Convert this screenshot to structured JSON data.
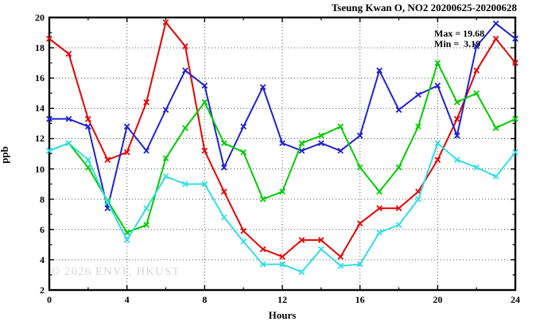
{
  "title": "Tseung Kwan O, NO2 20200625-20200628",
  "annotation": {
    "max_label": "Max = 19.68",
    "min_label": "Min =  3.19"
  },
  "axes": {
    "ylabel": "ppb",
    "xlabel": "Hours"
  },
  "watermark": "© 2026 ENVF, HKUST",
  "colors": {
    "series_red": "#e60000",
    "series_blue": "#2020d5",
    "series_green": "#00cc00",
    "series_cyan": "#33dde6",
    "frame": "#000000",
    "grid": "#555555",
    "watermark": "#d7d7d7"
  },
  "chart_data": {
    "type": "line",
    "title": "Tseung Kwan O, NO2 20200625-20200628",
    "xlabel": "Hours",
    "ylabel": "ppb",
    "x": [
      0,
      1,
      2,
      3,
      4,
      5,
      6,
      7,
      8,
      9,
      10,
      11,
      12,
      13,
      14,
      15,
      16,
      17,
      18,
      19,
      20,
      21,
      22,
      23,
      24
    ],
    "series": [
      {
        "name": "red-line",
        "color": "#e60000",
        "values": [
          18.6,
          17.6,
          13.3,
          10.6,
          11.1,
          14.4,
          19.68,
          18.1,
          11.2,
          8.5,
          5.9,
          4.7,
          4.2,
          5.3,
          5.3,
          4.2,
          6.4,
          7.4,
          7.4,
          8.5,
          10.6,
          13.3,
          16.5,
          18.6,
          17.0
        ]
      },
      {
        "name": "blue-line",
        "color": "#2020d5",
        "values": [
          13.3,
          13.3,
          12.8,
          7.4,
          12.8,
          11.2,
          13.9,
          16.5,
          15.5,
          10.1,
          12.8,
          15.4,
          11.7,
          11.2,
          11.7,
          11.2,
          12.2,
          16.5,
          13.9,
          14.9,
          15.5,
          12.2,
          18.1,
          19.6,
          18.6
        ]
      },
      {
        "name": "green-line",
        "color": "#00cc00",
        "values": [
          11.2,
          11.7,
          10.1,
          7.9,
          5.8,
          6.3,
          10.7,
          12.7,
          14.4,
          11.7,
          11.1,
          8.0,
          8.5,
          11.7,
          12.2,
          12.8,
          10.1,
          8.5,
          10.1,
          12.8,
          17.0,
          14.4,
          15.0,
          12.7,
          13.3
        ]
      },
      {
        "name": "cyan-line",
        "color": "#33dde6",
        "values": [
          11.2,
          11.7,
          10.6,
          7.8,
          5.3,
          7.4,
          9.5,
          9.0,
          9.0,
          6.8,
          5.2,
          3.7,
          3.7,
          3.19,
          4.7,
          3.6,
          3.7,
          5.8,
          6.3,
          8.0,
          11.7,
          10.6,
          10.1,
          9.5,
          11.1
        ]
      }
    ],
    "xlim": [
      0,
      24
    ],
    "ylim": [
      2,
      20
    ],
    "x_major_ticks": [
      0,
      4,
      8,
      12,
      16,
      20,
      24
    ],
    "x_minor_ticks": [
      2,
      6,
      10,
      14,
      18,
      22
    ],
    "y_major_ticks": [
      2,
      4,
      6,
      8,
      10,
      12,
      14,
      16,
      18,
      20
    ],
    "y_minor_ticks": [
      3,
      5,
      7,
      9,
      11,
      13,
      15,
      17,
      19
    ],
    "grid": true,
    "legend": "none",
    "stat_max": 19.68,
    "stat_min": 3.19
  }
}
